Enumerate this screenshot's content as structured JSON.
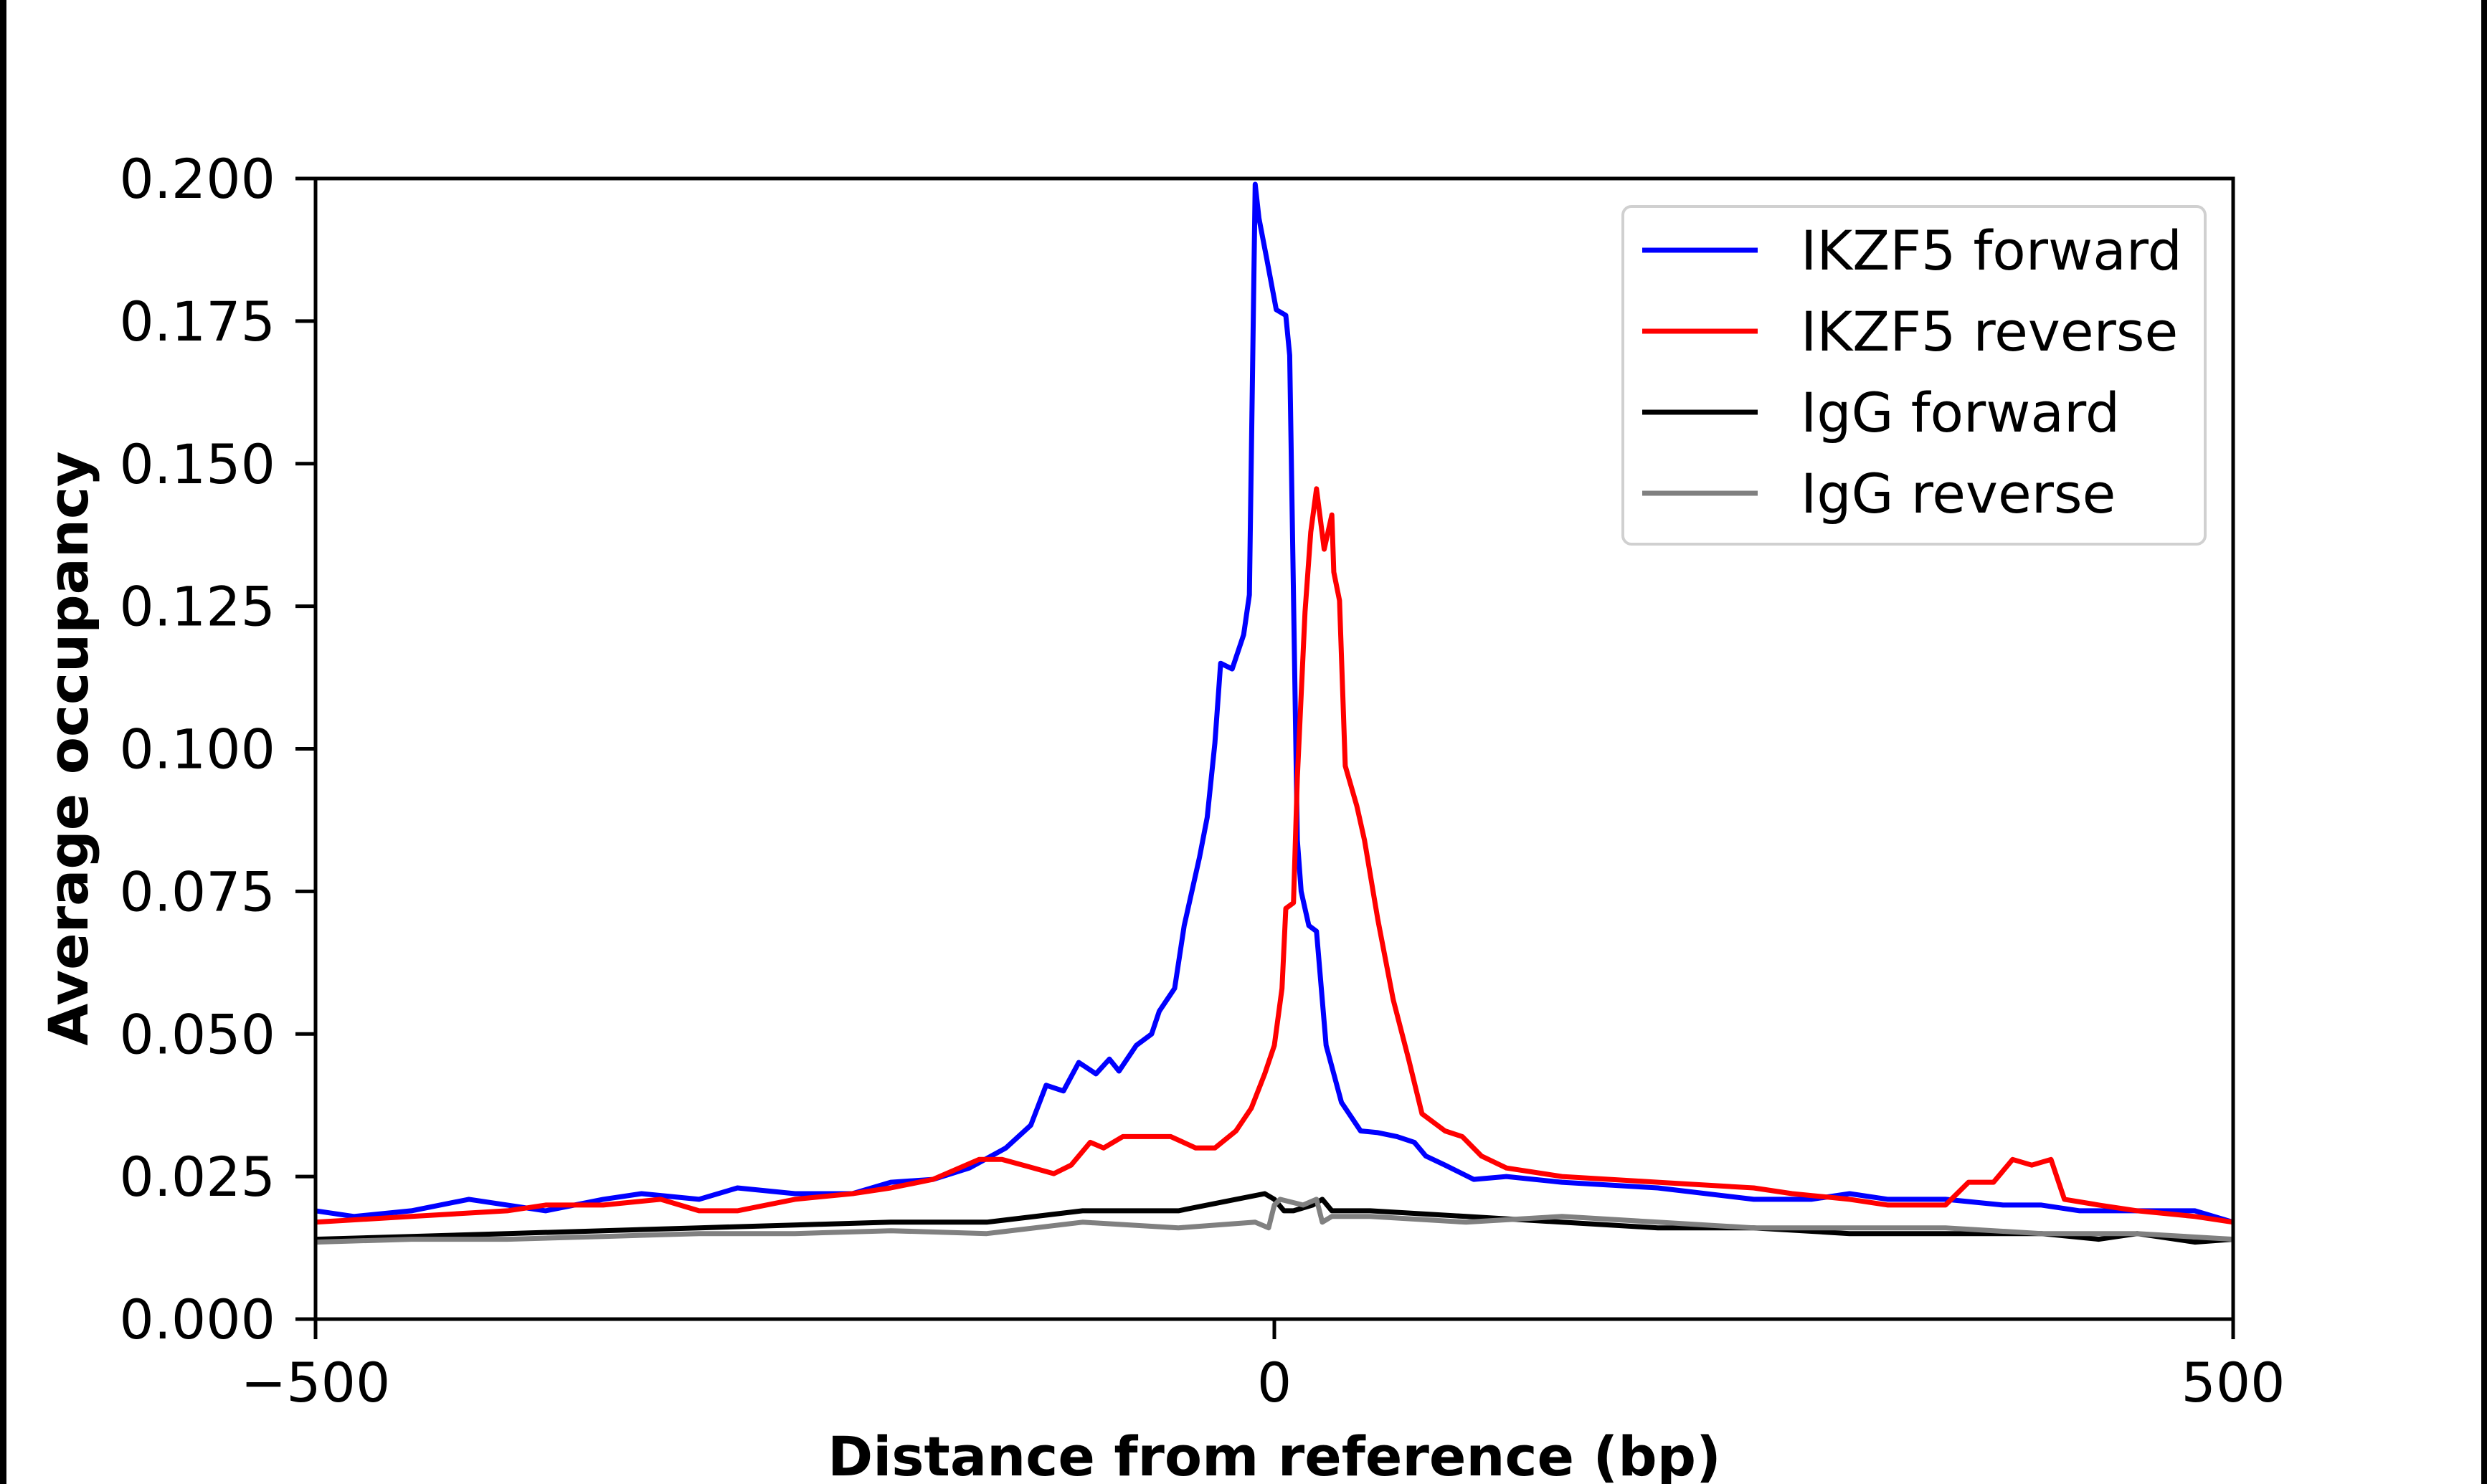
{
  "chart_data": {
    "type": "line",
    "title": "",
    "xlabel": "Distance from reference (bp)",
    "ylabel": "Average occupancy",
    "xlim": [
      -500,
      500
    ],
    "ylim": [
      0,
      0.2
    ],
    "xticks": [
      -500,
      0,
      500
    ],
    "xtick_labels": [
      "−500",
      "0",
      "500"
    ],
    "yticks": [
      0,
      0.025,
      0.05,
      0.075,
      0.1,
      0.125,
      0.15,
      0.175,
      0.2
    ],
    "ytick_labels": [
      "0.000",
      "0.025",
      "0.050",
      "0.075",
      "0.100",
      "0.125",
      "0.150",
      "0.175",
      "0.200"
    ],
    "grid": false,
    "legend_position": "top-right",
    "series": [
      {
        "name": "IKZF5 forward",
        "color": "#0000ff",
        "x": [
          -500,
          -480,
          -450,
          -420,
          -400,
          -380,
          -350,
          -330,
          -300,
          -280,
          -250,
          -220,
          -200,
          -178,
          -159,
          -140,
          -127,
          -119,
          -110,
          -102,
          -93,
          -86,
          -81,
          -72,
          -64,
          -60,
          -52,
          -47,
          -43,
          -39,
          -35,
          -31,
          -28,
          -22,
          -16,
          -13,
          -10,
          -8,
          -4,
          1,
          6,
          8,
          12,
          14,
          18,
          22,
          27,
          31,
          35,
          45,
          54,
          64,
          73,
          79,
          89,
          104,
          121,
          150,
          200,
          250,
          280,
          300,
          320,
          350,
          380,
          400,
          420,
          450,
          480,
          500
        ],
        "y": [
          0.019,
          0.018,
          0.019,
          0.021,
          0.02,
          0.019,
          0.021,
          0.022,
          0.021,
          0.023,
          0.022,
          0.022,
          0.024,
          0.0245,
          0.0265,
          0.03,
          0.034,
          0.041,
          0.04,
          0.045,
          0.043,
          0.0456,
          0.0435,
          0.048,
          0.05,
          0.054,
          0.058,
          0.069,
          0.075,
          0.081,
          0.088,
          0.101,
          0.115,
          0.114,
          0.12,
          0.127,
          0.199,
          0.193,
          0.186,
          0.177,
          0.176,
          0.169,
          0.084,
          0.075,
          0.069,
          0.068,
          0.048,
          0.043,
          0.038,
          0.033,
          0.0327,
          0.032,
          0.031,
          0.0286,
          0.027,
          0.0245,
          0.025,
          0.024,
          0.023,
          0.021,
          0.021,
          0.022,
          0.021,
          0.021,
          0.02,
          0.02,
          0.019,
          0.019,
          0.019,
          0.017
        ]
      },
      {
        "name": "IKZF5 reverse",
        "color": "#ff0000",
        "x": [
          -500,
          -450,
          -400,
          -380,
          -350,
          -320,
          -300,
          -280,
          -250,
          -220,
          -200,
          -178,
          -154,
          -142,
          -129,
          -115,
          -106,
          -96,
          -89,
          -79,
          -68,
          -54,
          -41,
          -31,
          -20,
          -12,
          -5,
          0,
          4,
          6,
          10,
          12,
          16,
          19,
          22,
          26,
          30,
          31,
          34,
          37,
          43,
          47,
          54,
          62,
          70,
          77,
          89,
          98,
          108,
          121,
          150,
          200,
          250,
          270,
          300,
          320,
          350,
          362,
          375,
          385,
          395,
          405,
          412,
          430,
          450,
          480,
          500
        ],
        "y": [
          0.017,
          0.018,
          0.019,
          0.02,
          0.02,
          0.021,
          0.019,
          0.019,
          0.021,
          0.022,
          0.023,
          0.0245,
          0.028,
          0.028,
          0.0268,
          0.0255,
          0.027,
          0.031,
          0.03,
          0.032,
          0.032,
          0.032,
          0.03,
          0.03,
          0.033,
          0.037,
          0.043,
          0.048,
          0.058,
          0.072,
          0.073,
          0.095,
          0.124,
          0.138,
          0.1456,
          0.135,
          0.141,
          0.131,
          0.126,
          0.097,
          0.09,
          0.084,
          0.07,
          0.056,
          0.0456,
          0.036,
          0.033,
          0.032,
          0.0286,
          0.0265,
          0.025,
          0.024,
          0.023,
          0.022,
          0.021,
          0.02,
          0.02,
          0.024,
          0.024,
          0.028,
          0.027,
          0.028,
          0.021,
          0.02,
          0.019,
          0.018,
          0.017
        ]
      },
      {
        "name": "IgG forward",
        "color": "#000000",
        "x": [
          -500,
          -450,
          -400,
          -350,
          -300,
          -250,
          -200,
          -150,
          -100,
          -50,
          -20,
          -5,
          0,
          5,
          10,
          20,
          25,
          30,
          50,
          100,
          150,
          200,
          250,
          300,
          350,
          400,
          430,
          450,
          480,
          500
        ],
        "y": [
          0.014,
          0.0145,
          0.015,
          0.0155,
          0.016,
          0.0165,
          0.017,
          0.017,
          0.019,
          0.019,
          0.021,
          0.022,
          0.021,
          0.019,
          0.019,
          0.02,
          0.021,
          0.019,
          0.019,
          0.018,
          0.017,
          0.016,
          0.016,
          0.015,
          0.015,
          0.015,
          0.014,
          0.015,
          0.0135,
          0.014
        ]
      },
      {
        "name": "IgG reverse",
        "color": "#808080",
        "x": [
          -500,
          -450,
          -400,
          -350,
          -300,
          -250,
          -200,
          -150,
          -100,
          -50,
          -10,
          -3,
          0,
          3,
          15,
          22,
          25,
          30,
          50,
          100,
          150,
          200,
          250,
          300,
          350,
          400,
          450,
          500
        ],
        "y": [
          0.0135,
          0.014,
          0.014,
          0.0145,
          0.015,
          0.015,
          0.0155,
          0.015,
          0.017,
          0.016,
          0.017,
          0.016,
          0.02,
          0.021,
          0.02,
          0.021,
          0.017,
          0.018,
          0.018,
          0.017,
          0.018,
          0.017,
          0.016,
          0.016,
          0.016,
          0.015,
          0.015,
          0.014
        ]
      }
    ]
  }
}
